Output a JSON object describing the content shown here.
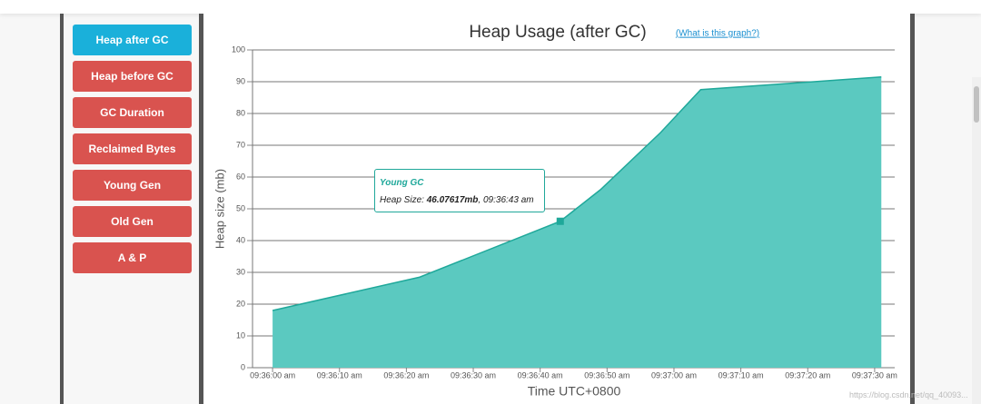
{
  "sidebar": {
    "buttons": [
      "Heap after GC",
      "Heap before GC",
      "GC Duration",
      "Reclaimed Bytes",
      "Young Gen",
      "Old Gen",
      "A & P"
    ],
    "active": 0
  },
  "chart_data": {
    "type": "area",
    "title": "Heap Usage (after GC)",
    "link": "(What is this graph?)",
    "x_label": "Time UTC+0800",
    "y_label": "Heap size (mb)",
    "x": [
      "09:36:00 am",
      "09:36:22 am",
      "09:36:43 am",
      "09:36:49 am",
      "09:36:58 am",
      "09:37:04 am",
      "09:37:31 am"
    ],
    "series": [
      {
        "name": "Young GC",
        "color": "#5bc9c0",
        "line_color": "#1fa89a",
        "values": [
          18,
          28.5,
          46.07617,
          56,
          74,
          87.5,
          91.5
        ],
        "value_labels": [
          null,
          null,
          "46.07617mb",
          null,
          null,
          null,
          null
        ]
      }
    ],
    "xlim": [
      "09:35:57 am",
      "09:37:33 am"
    ],
    "xticks": [
      "09:36:00 am",
      "09:36:10 am",
      "09:36:20 am",
      "09:36:30 am",
      "09:36:40 am",
      "09:36:50 am",
      "09:37:00 am",
      "09:37:10 am",
      "09:37:20 am",
      "09:37:30 am"
    ],
    "ylim": [
      0,
      100
    ],
    "yticks": [
      0,
      10,
      20,
      30,
      40,
      50,
      60,
      70,
      80,
      90,
      100
    ],
    "grid": true,
    "tooltip": {
      "point": 2,
      "label": "Heap Size:"
    }
  },
  "watermark": "https://blog.csdn.net/qq_40093..."
}
